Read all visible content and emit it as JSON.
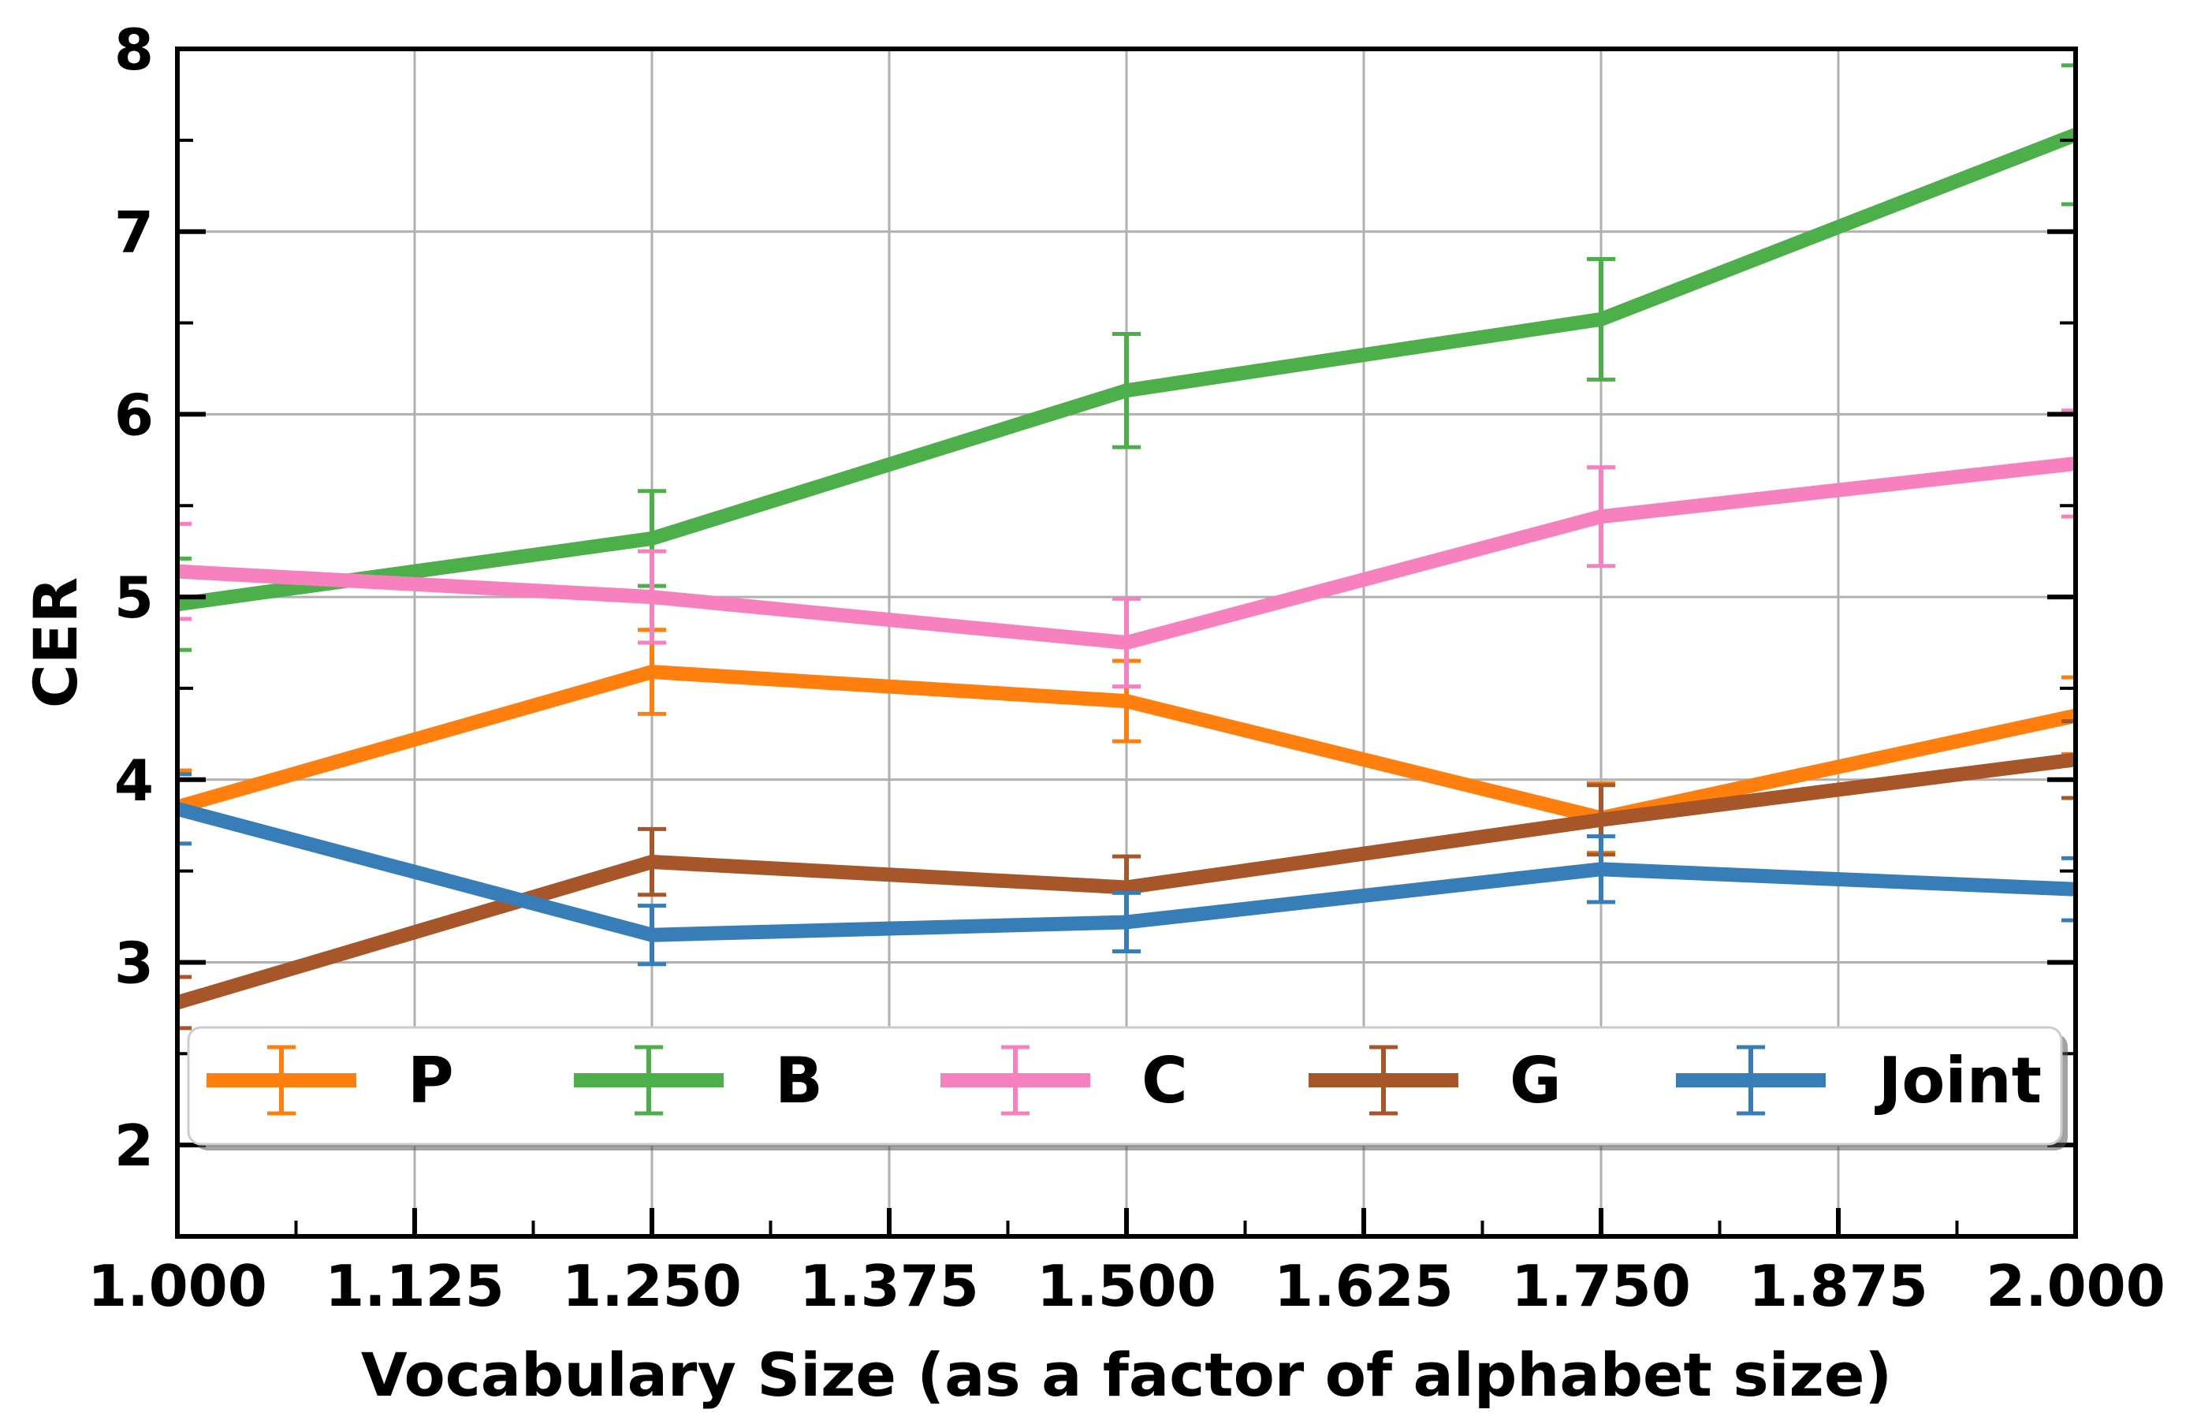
{
  "chart_data": {
    "type": "line",
    "title": "",
    "xlabel": "Vocabulary Size (as a factor of alphabet size)",
    "ylabel": "CER",
    "xlim": [
      1.0,
      2.0
    ],
    "ylim": [
      1.5,
      8.0
    ],
    "x_ticks": [
      "1.000",
      "1.125",
      "1.250",
      "1.375",
      "1.500",
      "1.625",
      "1.750",
      "1.875",
      "2.000"
    ],
    "x_tick_values": [
      1.0,
      1.125,
      1.25,
      1.375,
      1.5,
      1.625,
      1.75,
      1.875,
      2.0
    ],
    "y_ticks": [
      "2",
      "3",
      "4",
      "5",
      "6",
      "7",
      "8"
    ],
    "y_tick_values": [
      2,
      3,
      4,
      5,
      6,
      7,
      8
    ],
    "grid": true,
    "legend_position": "bottom",
    "x": [
      1.0,
      1.25,
      1.5,
      1.75,
      2.0
    ],
    "series": [
      {
        "name": "P",
        "color": "#ff7f0e",
        "values": [
          3.85,
          4.59,
          4.43,
          3.79,
          4.35
        ],
        "errors": [
          0.2,
          0.23,
          0.22,
          0.19,
          0.21
        ]
      },
      {
        "name": "B",
        "color": "#4daf4a",
        "values": [
          4.96,
          5.32,
          6.13,
          6.52,
          7.53
        ],
        "errors": [
          0.25,
          0.26,
          0.31,
          0.33,
          0.38
        ]
      },
      {
        "name": "C",
        "color": "#f781bf",
        "values": [
          5.14,
          5.0,
          4.75,
          5.44,
          5.73
        ],
        "errors": [
          0.26,
          0.25,
          0.24,
          0.27,
          0.29
        ]
      },
      {
        "name": "G",
        "color": "#a65628",
        "values": [
          2.78,
          3.55,
          3.41,
          3.78,
          4.11
        ],
        "errors": [
          0.14,
          0.18,
          0.17,
          0.19,
          0.21
        ]
      },
      {
        "name": "Joint",
        "color": "#377eb8",
        "values": [
          3.84,
          3.15,
          3.22,
          3.51,
          3.4
        ],
        "errors": [
          0.19,
          0.16,
          0.16,
          0.18,
          0.17
        ]
      }
    ]
  }
}
